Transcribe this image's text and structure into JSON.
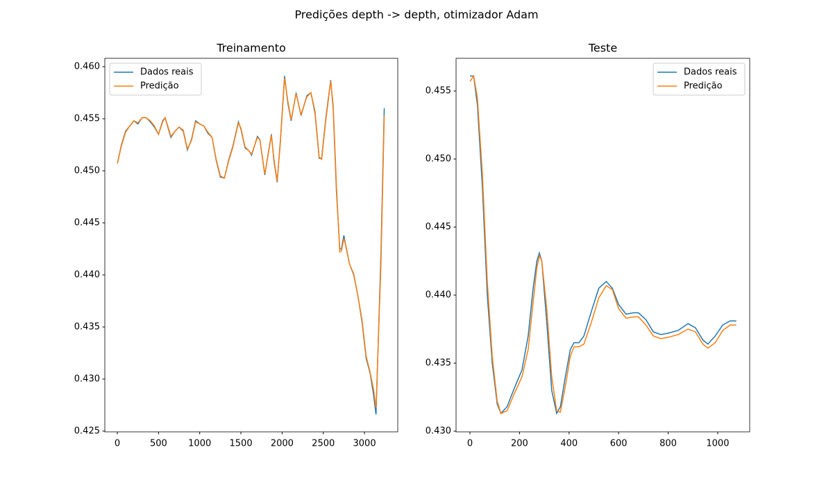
{
  "title": "Predições depth -> depth, otimizador Adam",
  "chart_data": [
    {
      "type": "line",
      "title": "Treinamento",
      "legend": "upper left",
      "x": [
        0,
        50,
        100,
        150,
        200,
        250,
        300,
        350,
        400,
        450,
        500,
        550,
        580,
        620,
        650,
        700,
        750,
        800,
        850,
        900,
        950,
        1000,
        1050,
        1100,
        1150,
        1200,
        1250,
        1300,
        1350,
        1400,
        1470,
        1500,
        1550,
        1600,
        1630,
        1700,
        1730,
        1790,
        1830,
        1870,
        1900,
        1940,
        1980,
        2030,
        2070,
        2110,
        2170,
        2230,
        2300,
        2350,
        2400,
        2450,
        2480,
        2530,
        2590,
        2620,
        2660,
        2700,
        2720,
        2750,
        2780,
        2820,
        2870,
        2920,
        2970,
        3020,
        3070,
        3110,
        3140,
        3200,
        3240
      ],
      "series": [
        {
          "name": "Dados reais",
          "color": "#1f77b4",
          "values": [
            0.4507,
            0.4525,
            0.4538,
            0.4543,
            0.4548,
            0.4545,
            0.4551,
            0.4551,
            0.4547,
            0.4542,
            0.4535,
            0.4548,
            0.4551,
            0.454,
            0.4532,
            0.4538,
            0.4542,
            0.4538,
            0.452,
            0.453,
            0.4548,
            0.4545,
            0.4543,
            0.4536,
            0.4532,
            0.451,
            0.4494,
            0.4493,
            0.451,
            0.4523,
            0.4547,
            0.454,
            0.4522,
            0.4519,
            0.4515,
            0.4533,
            0.453,
            0.4496,
            0.4516,
            0.4535,
            0.451,
            0.4489,
            0.453,
            0.4591,
            0.4565,
            0.4548,
            0.4575,
            0.4553,
            0.4572,
            0.4575,
            0.4555,
            0.4512,
            0.4512,
            0.455,
            0.4587,
            0.456,
            0.448,
            0.4425,
            0.4425,
            0.4438,
            0.4425,
            0.441,
            0.44,
            0.438,
            0.4355,
            0.432,
            0.4305,
            0.4285,
            0.4266,
            0.442,
            0.456
          ]
        },
        {
          "name": "Predição",
          "color": "#ff7f0e",
          "values": [
            0.4507,
            0.4524,
            0.4537,
            0.4543,
            0.4548,
            0.4546,
            0.4551,
            0.4551,
            0.4548,
            0.4543,
            0.4535,
            0.4547,
            0.4551,
            0.4541,
            0.4533,
            0.4538,
            0.4542,
            0.4539,
            0.4521,
            0.4529,
            0.4547,
            0.4545,
            0.4543,
            0.4537,
            0.4532,
            0.4511,
            0.4495,
            0.4493,
            0.4509,
            0.4522,
            0.4546,
            0.4541,
            0.4523,
            0.4519,
            0.4516,
            0.4532,
            0.453,
            0.4497,
            0.4515,
            0.4534,
            0.4512,
            0.449,
            0.4528,
            0.4589,
            0.4567,
            0.4549,
            0.4574,
            0.4554,
            0.4571,
            0.4575,
            0.4557,
            0.4513,
            0.4511,
            0.4548,
            0.4586,
            0.4563,
            0.4485,
            0.4422,
            0.4423,
            0.4435,
            0.4426,
            0.441,
            0.4401,
            0.438,
            0.4357,
            0.4322,
            0.4306,
            0.429,
            0.4272,
            0.441,
            0.4553
          ]
        }
      ],
      "xlim": [
        -152,
        3404
      ],
      "ylim": [
        0.42493,
        0.4608
      ],
      "xticks": [
        0,
        500,
        1000,
        1500,
        2000,
        2500,
        3000
      ],
      "yticks": [
        0.425,
        {
          "value": 0.43,
          "label": "0.430"
        },
        0.435,
        {
          "value": 0.44,
          "label": "0.440"
        },
        0.445,
        {
          "value": 0.45,
          "label": "0.450"
        },
        0.455,
        {
          "value": 0.46,
          "label": "0.460"
        }
      ]
    },
    {
      "type": "line",
      "title": "Teste",
      "legend": "upper right",
      "x": [
        0,
        15,
        30,
        50,
        70,
        90,
        110,
        125,
        150,
        180,
        210,
        235,
        255,
        270,
        280,
        290,
        310,
        330,
        350,
        365,
        385,
        405,
        420,
        440,
        460,
        490,
        520,
        550,
        575,
        600,
        630,
        660,
        680,
        710,
        740,
        770,
        800,
        840,
        880,
        910,
        940,
        960,
        990,
        1020,
        1050,
        1075
      ],
      "series": [
        {
          "name": "Dados reais",
          "color": "#1f77b4",
          "values": [
            0.4561,
            0.4561,
            0.454,
            0.448,
            0.44,
            0.435,
            0.432,
            0.4313,
            0.4318,
            0.4332,
            0.4345,
            0.437,
            0.4405,
            0.4425,
            0.4431,
            0.4425,
            0.438,
            0.433,
            0.4313,
            0.4318,
            0.434,
            0.436,
            0.4365,
            0.4365,
            0.437,
            0.4388,
            0.4405,
            0.441,
            0.4405,
            0.4393,
            0.4386,
            0.4387,
            0.4387,
            0.4382,
            0.4373,
            0.4371,
            0.4372,
            0.4374,
            0.4379,
            0.4376,
            0.4367,
            0.4364,
            0.437,
            0.4378,
            0.4381,
            0.4381
          ]
        },
        {
          "name": "Predição",
          "color": "#ff7f0e",
          "values": [
            0.4557,
            0.4561,
            0.4545,
            0.449,
            0.441,
            0.4355,
            0.4322,
            0.4313,
            0.4315,
            0.4328,
            0.434,
            0.436,
            0.4395,
            0.442,
            0.4429,
            0.4425,
            0.439,
            0.434,
            0.4315,
            0.4314,
            0.4333,
            0.4355,
            0.4362,
            0.4362,
            0.4364,
            0.438,
            0.4398,
            0.4407,
            0.4404,
            0.439,
            0.4383,
            0.4384,
            0.4384,
            0.4378,
            0.437,
            0.4368,
            0.4369,
            0.4371,
            0.4375,
            0.4373,
            0.4364,
            0.4361,
            0.4365,
            0.4374,
            0.4378,
            0.4378
          ]
        }
      ],
      "xlim": [
        -56,
        1129
      ],
      "ylim": [
        0.42995,
        0.4574
      ],
      "xticks": [
        0,
        200,
        400,
        600,
        800,
        1000
      ],
      "yticks": [
        {
          "value": 0.43,
          "label": "0.430"
        },
        0.435,
        {
          "value": 0.44,
          "label": "0.440"
        },
        0.445,
        {
          "value": 0.45,
          "label": "0.450"
        },
        0.455
      ]
    }
  ]
}
